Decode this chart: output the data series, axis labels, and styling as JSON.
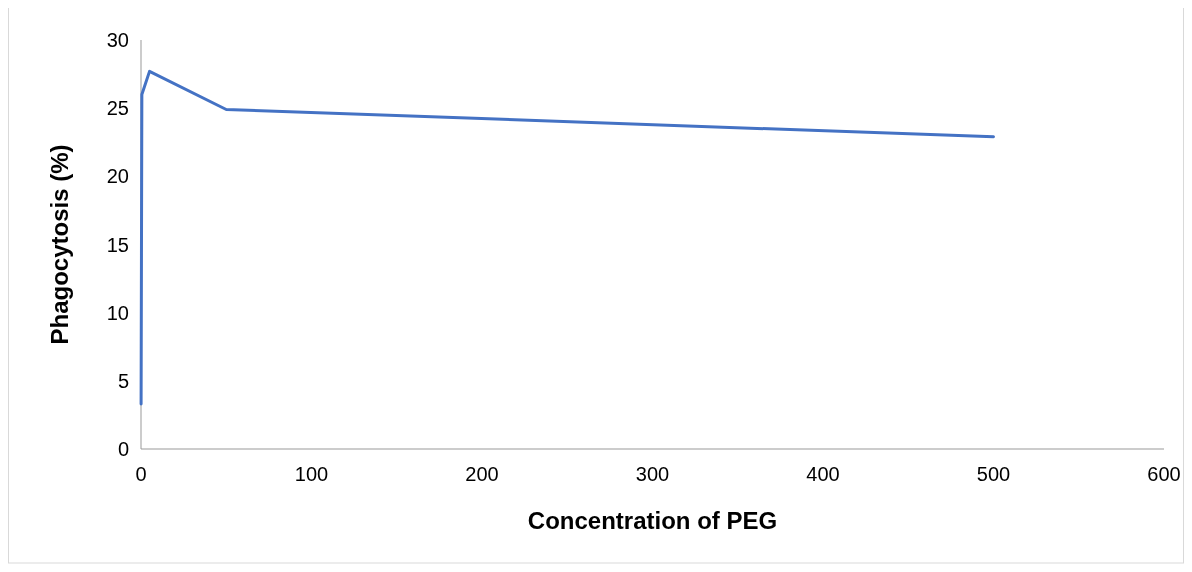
{
  "chart_data": {
    "type": "line",
    "xlabel": "Concentration of PEG",
    "ylabel": "Phagocytosis (%)",
    "x": [
      0.05,
      0.5,
      5,
      50,
      500
    ],
    "series": [
      {
        "color": "#4472c4",
        "values": [
          3.3,
          26,
          27.7,
          24.9,
          22.9
        ]
      }
    ],
    "xlim": [
      0,
      600
    ],
    "xticks": [
      0,
      100,
      200,
      300,
      400,
      500,
      600
    ],
    "ylim": [
      0,
      30
    ],
    "yticks": [
      0,
      5,
      10,
      15,
      20,
      25,
      30
    ],
    "grid": false,
    "marker": "none",
    "line_style": "solid"
  }
}
